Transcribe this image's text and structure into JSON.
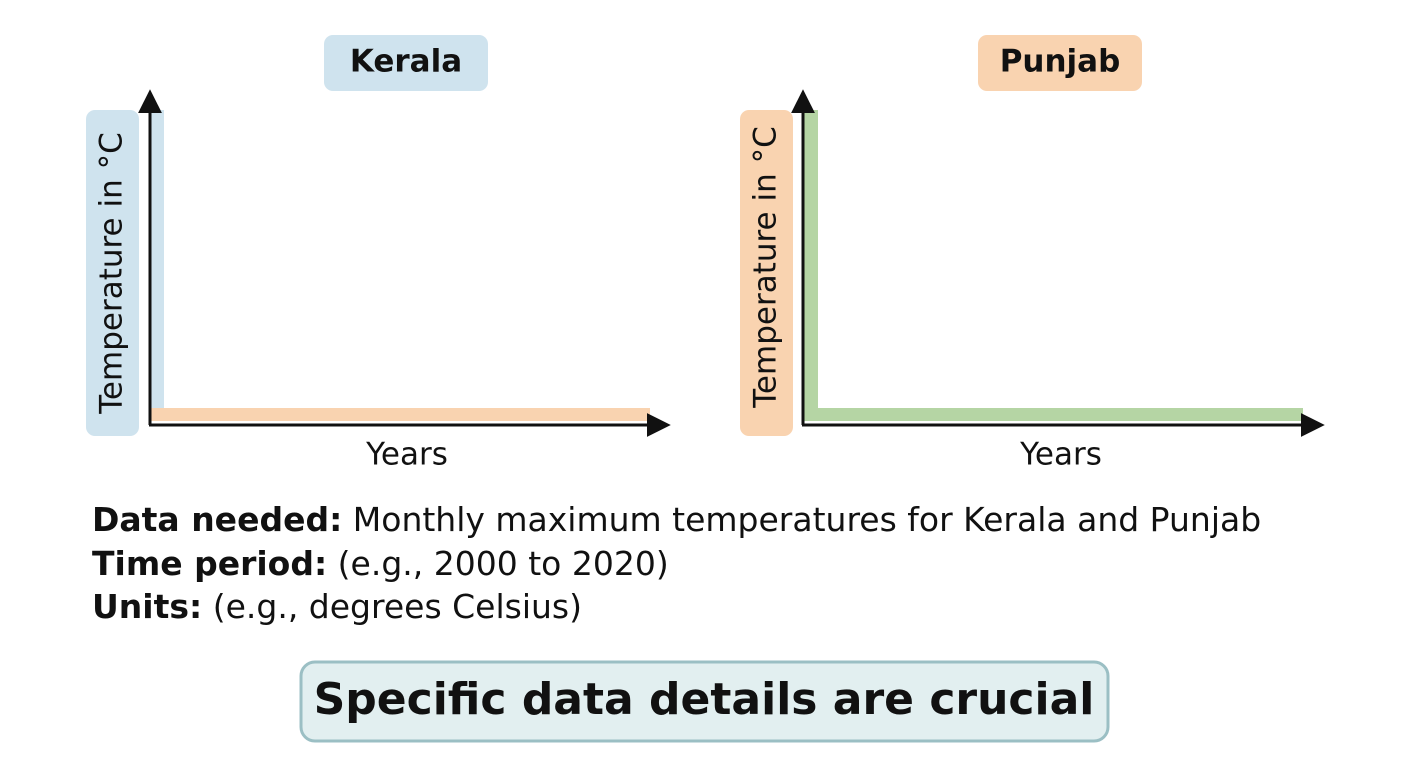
{
  "panels": [
    {
      "title": "Kerala",
      "y_label": "Temperature in °C",
      "x_label": "Years"
    },
    {
      "title": "Punjab",
      "y_label": "Temperature in °C",
      "x_label": "Years"
    }
  ],
  "notes": [
    {
      "label": "Data needed:",
      "text": "Monthly maximum temperatures for Kerala and Punjab"
    },
    {
      "label": "Time period:",
      "text": "(e.g., 2000 to 2020)"
    },
    {
      "label": "Units:",
      "text": "(e.g., degrees Celsius)"
    }
  ],
  "callout": "Specific data details are crucial"
}
